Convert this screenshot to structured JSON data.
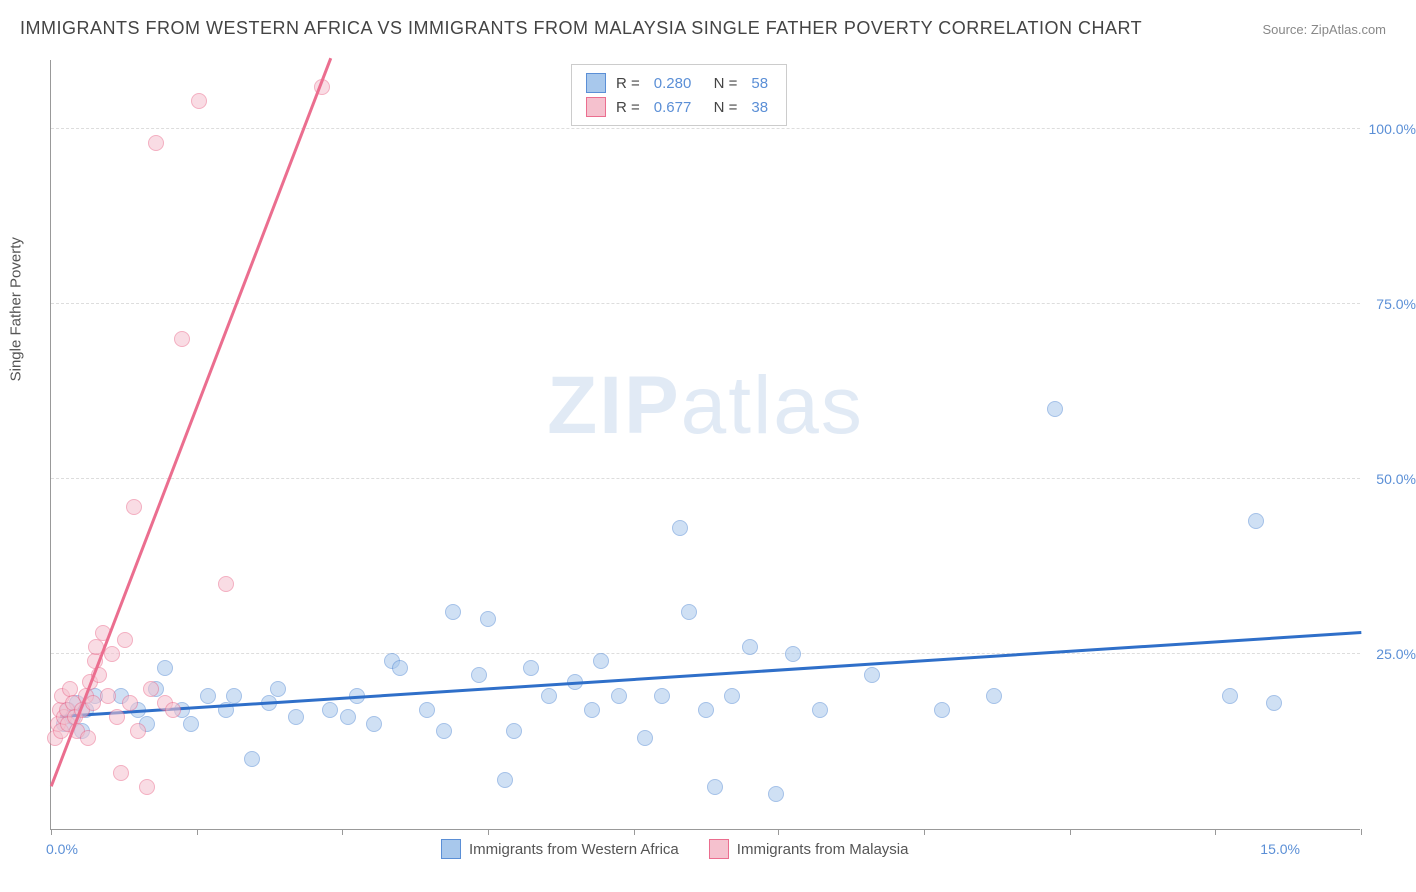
{
  "title": "IMMIGRANTS FROM WESTERN AFRICA VS IMMIGRANTS FROM MALAYSIA SINGLE FATHER POVERTY CORRELATION CHART",
  "source": "Source: ZipAtlas.com",
  "y_axis_label": "Single Father Poverty",
  "watermark_bold": "ZIP",
  "watermark_light": "atlas",
  "chart": {
    "type": "scatter",
    "background_color": "#ffffff",
    "grid_color": "#dddddd",
    "axis_color": "#999999",
    "x_domain": [
      0,
      15
    ],
    "y_domain": [
      0,
      110
    ],
    "x_ticks_label_left": "0.0%",
    "x_ticks_label_right": "15.0%",
    "x_tick_positions": [
      0,
      1.67,
      3.33,
      5.0,
      6.67,
      8.33,
      10.0,
      11.67,
      13.33,
      15.0
    ],
    "y_ticks": [
      {
        "v": 25,
        "label": "25.0%"
      },
      {
        "v": 50,
        "label": "50.0%"
      },
      {
        "v": 75,
        "label": "75.0%"
      },
      {
        "v": 100,
        "label": "100.0%"
      }
    ],
    "point_radius": 8,
    "point_opacity": 0.55,
    "series": [
      {
        "name": "Immigrants from Western Africa",
        "fill_color": "#a8c8ec",
        "stroke_color": "#5b8fd6",
        "line_color": "#2f6fc9",
        "r_value": "0.280",
        "n_value": "58",
        "trend": {
          "x1": 0.1,
          "y1": 16,
          "x2": 15.0,
          "y2": 28
        },
        "points": [
          [
            0.15,
            15
          ],
          [
            0.2,
            17
          ],
          [
            0.25,
            16
          ],
          [
            0.3,
            18
          ],
          [
            0.35,
            14
          ],
          [
            0.4,
            17
          ],
          [
            0.5,
            19
          ],
          [
            0.8,
            19
          ],
          [
            1.0,
            17
          ],
          [
            1.1,
            15
          ],
          [
            1.2,
            20
          ],
          [
            1.3,
            23
          ],
          [
            1.5,
            17
          ],
          [
            1.6,
            15
          ],
          [
            1.8,
            19
          ],
          [
            2.0,
            17
          ],
          [
            2.1,
            19
          ],
          [
            2.3,
            10
          ],
          [
            2.5,
            18
          ],
          [
            2.6,
            20
          ],
          [
            2.8,
            16
          ],
          [
            3.2,
            17
          ],
          [
            3.4,
            16
          ],
          [
            3.5,
            19
          ],
          [
            3.7,
            15
          ],
          [
            3.9,
            24
          ],
          [
            4.0,
            23
          ],
          [
            4.3,
            17
          ],
          [
            4.5,
            14
          ],
          [
            4.6,
            31
          ],
          [
            4.9,
            22
          ],
          [
            5.0,
            30
          ],
          [
            5.2,
            7
          ],
          [
            5.3,
            14
          ],
          [
            5.5,
            23
          ],
          [
            5.7,
            19
          ],
          [
            6.0,
            21
          ],
          [
            6.2,
            17
          ],
          [
            6.3,
            24
          ],
          [
            6.5,
            19
          ],
          [
            6.8,
            13
          ],
          [
            7.0,
            19
          ],
          [
            7.2,
            43
          ],
          [
            7.3,
            31
          ],
          [
            7.5,
            17
          ],
          [
            7.6,
            6
          ],
          [
            7.8,
            19
          ],
          [
            8.0,
            26
          ],
          [
            8.3,
            5
          ],
          [
            8.5,
            25
          ],
          [
            8.8,
            17
          ],
          [
            9.4,
            22
          ],
          [
            10.2,
            17
          ],
          [
            10.8,
            19
          ],
          [
            11.5,
            60
          ],
          [
            13.5,
            19
          ],
          [
            13.8,
            44
          ],
          [
            14.0,
            18
          ]
        ]
      },
      {
        "name": "Immigrants from Malaysia",
        "fill_color": "#f5c1ce",
        "stroke_color": "#eb6e8f",
        "line_color": "#eb6e8f",
        "r_value": "0.677",
        "n_value": "38",
        "trend": {
          "x1": 0.0,
          "y1": 6,
          "x2": 3.2,
          "y2": 110
        },
        "points": [
          [
            0.05,
            13
          ],
          [
            0.08,
            15
          ],
          [
            0.1,
            17
          ],
          [
            0.12,
            14
          ],
          [
            0.13,
            19
          ],
          [
            0.15,
            16
          ],
          [
            0.18,
            17
          ],
          [
            0.2,
            15
          ],
          [
            0.22,
            20
          ],
          [
            0.25,
            18
          ],
          [
            0.28,
            16
          ],
          [
            0.3,
            14
          ],
          [
            0.35,
            17
          ],
          [
            0.4,
            19
          ],
          [
            0.42,
            13
          ],
          [
            0.45,
            21
          ],
          [
            0.48,
            18
          ],
          [
            0.5,
            24
          ],
          [
            0.52,
            26
          ],
          [
            0.55,
            22
          ],
          [
            0.6,
            28
          ],
          [
            0.65,
            19
          ],
          [
            0.7,
            25
          ],
          [
            0.75,
            16
          ],
          [
            0.8,
            8
          ],
          [
            0.85,
            27
          ],
          [
            0.9,
            18
          ],
          [
            0.95,
            46
          ],
          [
            1.0,
            14
          ],
          [
            1.1,
            6
          ],
          [
            1.15,
            20
          ],
          [
            1.2,
            98
          ],
          [
            1.3,
            18
          ],
          [
            1.4,
            17
          ],
          [
            1.5,
            70
          ],
          [
            1.7,
            104
          ],
          [
            2.0,
            35
          ],
          [
            3.1,
            106
          ]
        ]
      }
    ]
  }
}
